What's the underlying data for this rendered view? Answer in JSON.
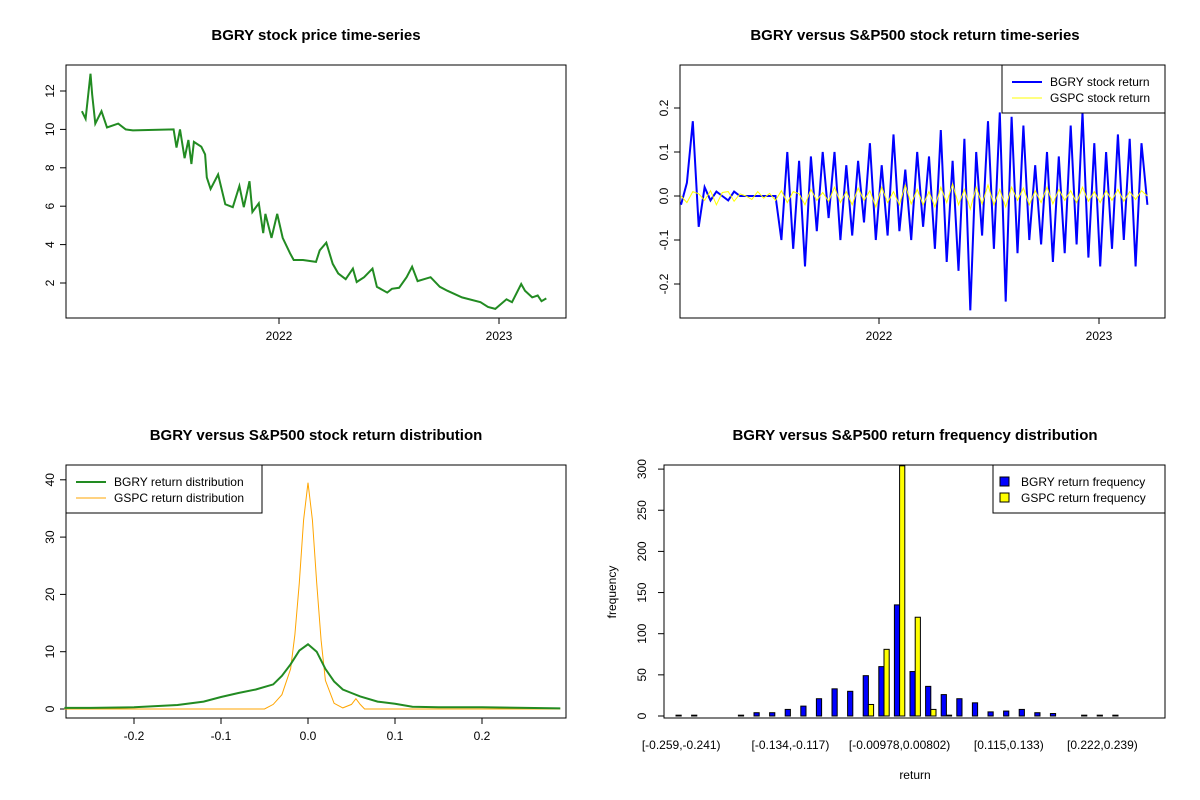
{
  "chart_data": [
    {
      "type": "line",
      "title": "BGRY stock price time-series",
      "xlabel": "",
      "ylabel": "",
      "x_ticks": [
        "2022",
        "2023"
      ],
      "y_ticks": [
        2,
        4,
        6,
        8,
        10,
        12
      ],
      "color": "#228B22",
      "series": [
        {
          "name": "BGRY price",
          "points": [
            [
              2021.104,
              10.95
            ],
            [
              2021.121,
              10.55
            ],
            [
              2021.143,
              12.9
            ],
            [
              2021.151,
              11.8
            ],
            [
              2021.165,
              10.3
            ],
            [
              2021.193,
              10.95
            ],
            [
              2021.218,
              10.1
            ],
            [
              2021.269,
              10.3
            ],
            [
              2021.303,
              10.0
            ],
            [
              2021.336,
              9.95
            ],
            [
              2021.521,
              10.0
            ],
            [
              2021.534,
              9.05
            ],
            [
              2021.55,
              10.0
            ],
            [
              2021.571,
              8.5
            ],
            [
              2021.588,
              9.45
            ],
            [
              2021.602,
              8.2
            ],
            [
              2021.613,
              9.35
            ],
            [
              2021.647,
              9.1
            ],
            [
              2021.664,
              8.7
            ],
            [
              2021.672,
              7.5
            ],
            [
              2021.689,
              6.9
            ],
            [
              2021.723,
              7.65
            ],
            [
              2021.756,
              6.1
            ],
            [
              2021.79,
              5.95
            ],
            [
              2021.82,
              7.05
            ],
            [
              2021.84,
              5.95
            ],
            [
              2021.866,
              7.3
            ],
            [
              2021.879,
              5.7
            ],
            [
              2021.908,
              6.15
            ],
            [
              2021.928,
              4.6
            ],
            [
              2021.938,
              5.6
            ],
            [
              2021.966,
              4.35
            ],
            [
              2021.992,
              5.6
            ],
            [
              2022.017,
              4.35
            ],
            [
              2022.05,
              3.55
            ],
            [
              2022.067,
              3.2
            ],
            [
              2022.109,
              3.2
            ],
            [
              2022.168,
              3.1
            ],
            [
              2022.185,
              3.7
            ],
            [
              2022.215,
              4.1
            ],
            [
              2022.244,
              3.0
            ],
            [
              2022.269,
              2.5
            ],
            [
              2022.303,
              2.2
            ],
            [
              2022.336,
              2.75
            ],
            [
              2022.353,
              2.05
            ],
            [
              2022.387,
              2.3
            ],
            [
              2022.425,
              2.75
            ],
            [
              2022.445,
              1.8
            ],
            [
              2022.492,
              1.5
            ],
            [
              2022.513,
              1.7
            ],
            [
              2022.546,
              1.75
            ],
            [
              2022.58,
              2.3
            ],
            [
              2022.605,
              2.85
            ],
            [
              2022.63,
              2.1
            ],
            [
              2022.689,
              2.3
            ],
            [
              2022.731,
              1.8
            ],
            [
              2022.765,
              1.6
            ],
            [
              2022.832,
              1.25
            ],
            [
              2022.916,
              1.0
            ],
            [
              2022.95,
              0.75
            ],
            [
              2022.983,
              0.65
            ],
            [
              2023.034,
              1.15
            ],
            [
              2023.059,
              1.0
            ],
            [
              2023.101,
              1.95
            ],
            [
              2023.118,
              1.6
            ],
            [
              2023.151,
              1.25
            ],
            [
              2023.176,
              1.35
            ],
            [
              2023.193,
              1.05
            ],
            [
              2023.215,
              1.2
            ]
          ]
        }
      ]
    },
    {
      "type": "line",
      "title": "BGRY versus S&P500 stock return time-series",
      "x_ticks": [
        "2022",
        "2023"
      ],
      "y_ticks": [
        -0.2,
        -0.1,
        0.0,
        0.1,
        0.2
      ],
      "x_range": [
        2021.1,
        2023.22
      ],
      "legend": {
        "position": "top-right",
        "entries": [
          "BGRY stock return",
          "GSPC stock return"
        ]
      },
      "series": [
        {
          "name": "BGRY stock return",
          "color": "#0000FF",
          "values": [
            -0.02,
            0.03,
            0.17,
            -0.07,
            0.02,
            -0.01,
            0.01,
            0.0,
            -0.01,
            0.01,
            0.0,
            0.0,
            0.0,
            0.0,
            0.0,
            0.0,
            0.0,
            -0.1,
            0.1,
            -0.12,
            0.08,
            -0.16,
            0.09,
            -0.08,
            0.1,
            -0.05,
            0.1,
            -0.1,
            0.07,
            -0.09,
            0.08,
            -0.06,
            0.12,
            -0.1,
            0.07,
            -0.09,
            0.14,
            -0.08,
            0.06,
            -0.1,
            0.1,
            -0.07,
            0.09,
            -0.12,
            0.15,
            -0.15,
            0.08,
            -0.17,
            0.13,
            -0.26,
            0.1,
            -0.09,
            0.17,
            -0.12,
            0.19,
            -0.24,
            0.18,
            -0.13,
            0.16,
            -0.1,
            0.07,
            -0.11,
            0.1,
            -0.15,
            0.09,
            -0.13,
            0.16,
            -0.11,
            0.19,
            -0.14,
            0.12,
            -0.16,
            0.1,
            -0.12,
            0.14,
            -0.1,
            0.13,
            -0.16,
            0.12,
            -0.02
          ]
        },
        {
          "name": "GSPC stock return",
          "color": "#FFFF00",
          "values": [
            0.0,
            -0.015,
            0.01,
            0.005,
            -0.01,
            0.012,
            -0.02,
            0.008,
            0.01,
            -0.012,
            0.005,
            0.0,
            -0.008,
            0.01,
            -0.005,
            0.006,
            -0.01,
            0.012,
            -0.015,
            0.01,
            0.005,
            -0.02,
            0.015,
            -0.01,
            0.008,
            -0.012,
            0.02,
            -0.015,
            0.01,
            -0.02,
            0.018,
            -0.01,
            0.012,
            -0.025,
            0.02,
            -0.015,
            0.01,
            -0.02,
            0.025,
            -0.018,
            0.015,
            -0.02,
            0.01,
            -0.025,
            0.02,
            -0.015,
            0.028,
            -0.02,
            0.015,
            -0.03,
            0.02,
            -0.018,
            0.025,
            -0.02,
            0.015,
            -0.025,
            0.02,
            -0.01,
            0.018,
            -0.02,
            0.012,
            -0.015,
            0.02,
            -0.018,
            0.015,
            -0.01,
            0.012,
            -0.015,
            0.02,
            -0.012,
            0.01,
            -0.015,
            0.012,
            -0.01,
            0.015,
            -0.012,
            0.01,
            -0.008,
            0.012,
            0.0
          ]
        }
      ]
    },
    {
      "type": "line",
      "title": "BGRY versus S&P500 stock return distribution",
      "x_ticks": [
        -0.2,
        -0.1,
        0.0,
        0.1,
        0.2
      ],
      "y_ticks": [
        0,
        10,
        20,
        30,
        40
      ],
      "x_range": [
        -0.278,
        0.297
      ],
      "legend": {
        "position": "top-left",
        "entries": [
          "BGRY return distribution",
          "GSPC return distribution"
        ]
      },
      "series": [
        {
          "name": "BGRY return distribution",
          "color": "#228B22",
          "x": [
            -0.28,
            -0.25,
            -0.2,
            -0.15,
            -0.12,
            -0.1,
            -0.08,
            -0.06,
            -0.04,
            -0.03,
            -0.02,
            -0.01,
            0,
            0.01,
            0.02,
            0.03,
            0.04,
            0.05,
            0.06,
            0.08,
            0.1,
            0.12,
            0.15,
            0.2,
            0.25,
            0.29
          ],
          "y": [
            0.2,
            0.2,
            0.3,
            0.7,
            1.3,
            2.1,
            2.8,
            3.4,
            4.3,
            5.8,
            7.8,
            10.2,
            11.3,
            10.0,
            7.0,
            4.8,
            3.4,
            2.8,
            2.2,
            1.3,
            0.9,
            0.4,
            0.3,
            0.3,
            0.2,
            0.1
          ]
        },
        {
          "name": "GSPC return distribution",
          "color": "#FFA500",
          "x": [
            -0.28,
            -0.05,
            -0.04,
            -0.03,
            -0.02,
            -0.015,
            -0.01,
            -0.005,
            0,
            0.005,
            0.01,
            0.015,
            0.02,
            0.03,
            0.04,
            0.05,
            0.055,
            0.06,
            0.065,
            0.29
          ],
          "y": [
            0,
            0,
            0.8,
            2.5,
            7,
            13,
            22,
            33,
            39.5,
            33,
            22,
            12,
            5,
            1,
            0.2,
            0.8,
            1.8,
            0.8,
            0,
            0
          ]
        }
      ]
    },
    {
      "type": "bar",
      "title": "BGRY versus S&P500 return frequency distribution",
      "xlabel": "return",
      "ylabel": "frequency",
      "y_ticks": [
        0,
        50,
        100,
        150,
        200,
        250,
        300
      ],
      "ylim": [
        0,
        300
      ],
      "category_labels_shown": {
        "1": "[-0.259,-0.241)",
        "8": "[-0.134,-0.117)",
        "15": "[-0.00978,0.00802)",
        "22": "[0.115,0.133)",
        "28": "[0.222,0.239)"
      },
      "legend": {
        "position": "top-right",
        "entries": [
          "BGRY return frequency",
          "GSPC return frequency"
        ]
      },
      "series": [
        {
          "name": "BGRY return frequency",
          "color": "#0000FF",
          "values": [
            1,
            1,
            0,
            0,
            1,
            4,
            4,
            8,
            12,
            21,
            33,
            30,
            49,
            60,
            135,
            54,
            36,
            26,
            21,
            16,
            5,
            6,
            8,
            4,
            3,
            0,
            1,
            1,
            1,
            0
          ]
        },
        {
          "name": "GSPC return frequency",
          "color": "#FFFF00",
          "values": [
            0,
            0,
            0,
            0,
            0,
            0,
            0,
            0,
            0,
            0,
            0,
            0,
            14,
            81,
            310,
            120,
            8,
            1,
            0,
            0,
            0,
            0,
            0,
            0,
            0,
            0,
            0,
            0,
            0,
            0
          ]
        }
      ]
    }
  ]
}
